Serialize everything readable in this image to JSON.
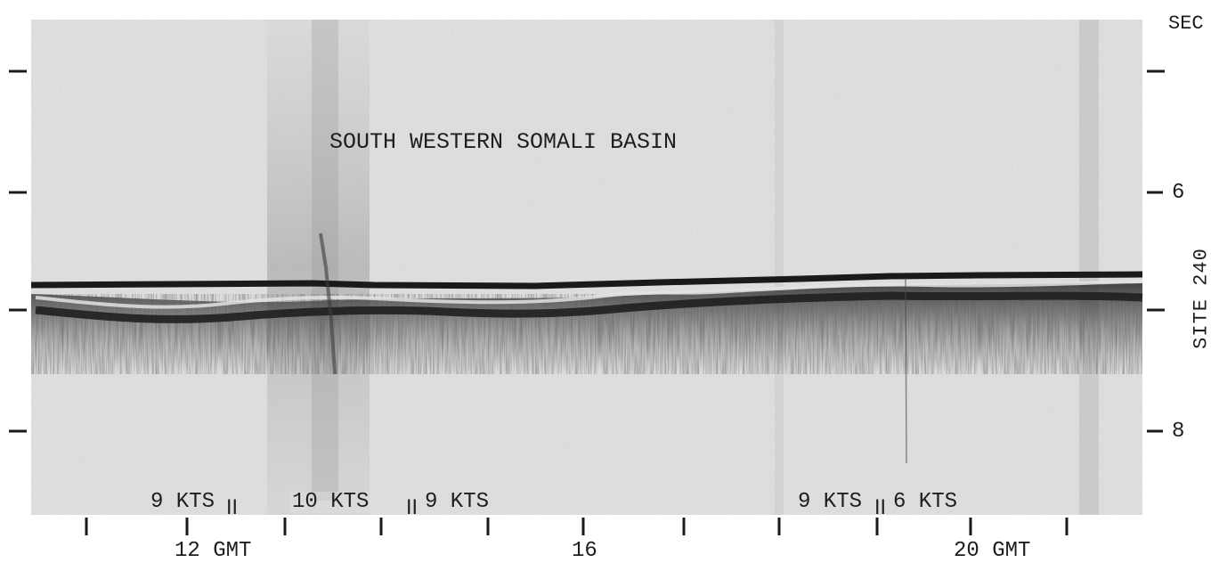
{
  "record": {
    "title": "SOUTH WESTERN SOMALI BASIN",
    "site_label": "SITE 240",
    "time_axis": {
      "labels": [
        "12 GMT",
        "16",
        "20 GMT"
      ]
    },
    "depth_axis": {
      "unit_label": "SEC",
      "labels": [
        "6",
        "8"
      ]
    },
    "speed_segments": [
      "9 KTS",
      "10 KTS",
      "9 KTS",
      "9 KTS",
      "6 KTS"
    ],
    "speed_break_mark": "II",
    "colors": {
      "paper": "#d9d9d9",
      "reflector": "#1a1a1a",
      "ink": "#1e1e1e"
    }
  }
}
